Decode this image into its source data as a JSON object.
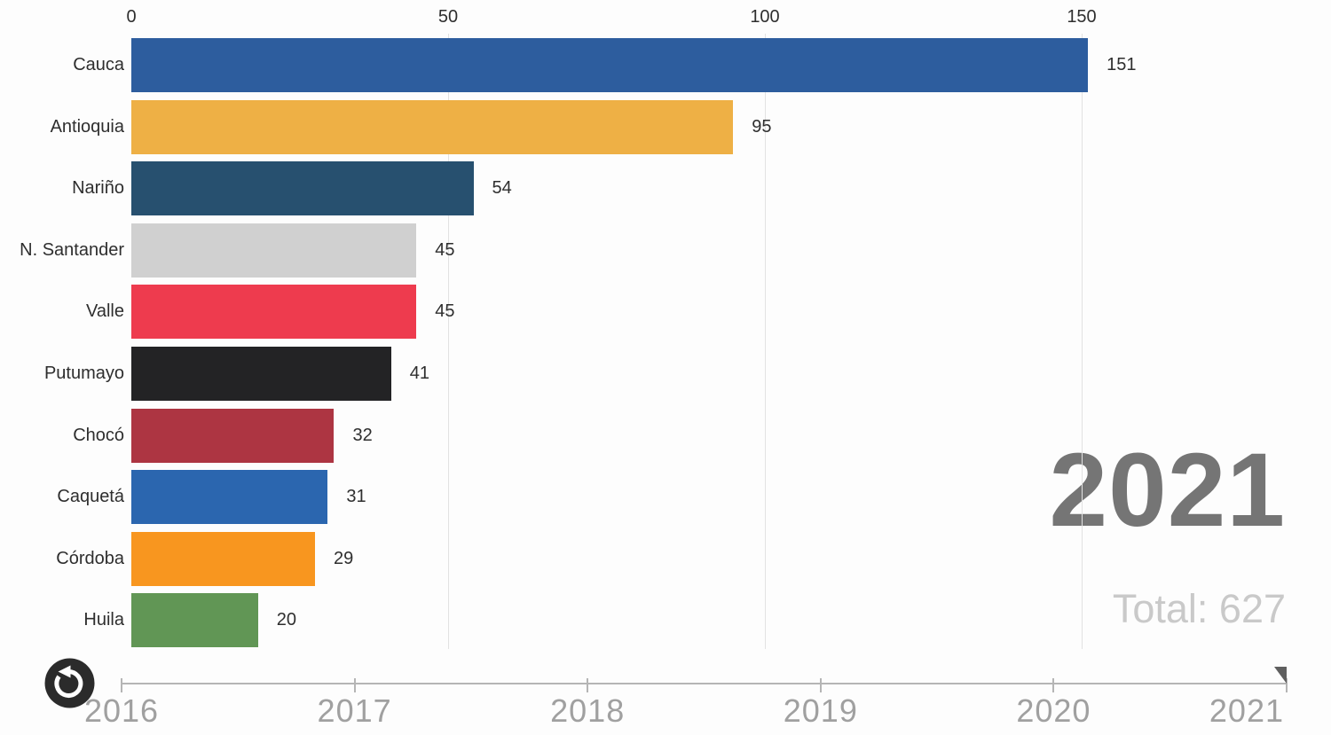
{
  "chart_data": {
    "type": "bar",
    "orientation": "horizontal",
    "categories": [
      "Cauca",
      "Antioquia",
      "Nariño",
      "N. Santander",
      "Valle",
      "Putumayo",
      "Chocó",
      "Caquetá",
      "Córdoba",
      "Huila"
    ],
    "values": [
      151,
      95,
      54,
      45,
      45,
      41,
      32,
      31,
      29,
      20
    ],
    "bar_colors": [
      "#2d5d9e",
      "#eeb045",
      "#27506f",
      "#d0d0d0",
      "#ee3b4e",
      "#232325",
      "#ad3542",
      "#2b66af",
      "#f8961f",
      "#619655"
    ],
    "x_ticks": [
      0,
      50,
      100,
      150
    ],
    "xmax": 150,
    "grid": true,
    "legend": "none",
    "value_labels_shown": true
  },
  "header": {
    "year_label": "2021",
    "total_label": "Total: 627"
  },
  "timeline": {
    "years": [
      "2016",
      "2017",
      "2018",
      "2019",
      "2020",
      "2021"
    ],
    "current_year": "2021"
  },
  "controls": {
    "replay_icon": "restart-counterclockwise-arrow"
  },
  "colors": {
    "background": "#fdfdfd",
    "axis_text": "#2e2e2e",
    "gridline": "#e2e2e2",
    "timeline_track": "#b5b5b5",
    "timeline_text": "#a0a0a0",
    "big_year_text": "#757575",
    "total_text": "#c9c9c9",
    "replay_background": "#2b2b2b"
  }
}
